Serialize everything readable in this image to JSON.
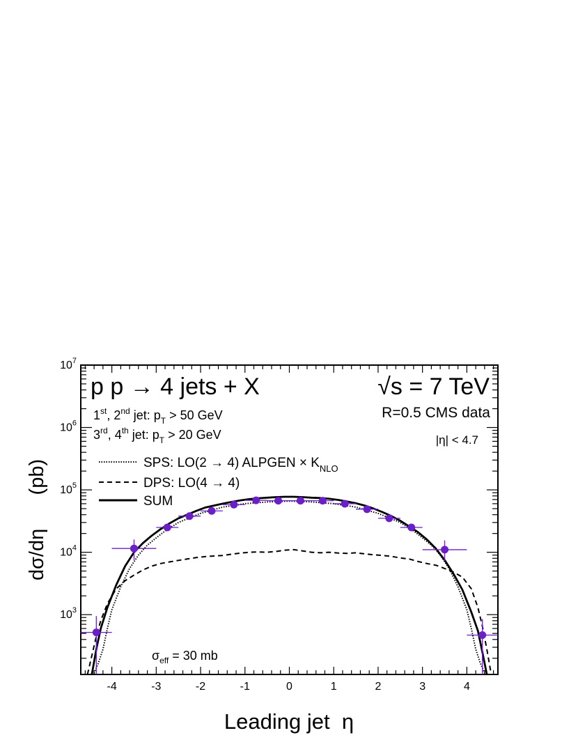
{
  "chart_data": {
    "type": "line",
    "title": "p p → 4 jets + X",
    "energy_label": "√s = 7 TeV",
    "xlabel": "Leading jet  η",
    "ylabel": "dσ/dη      (pb)",
    "xlim": [
      -4.7,
      4.7
    ],
    "ylim": [
      110,
      10000000
    ],
    "yscale": "log",
    "xticks": [
      "-4",
      "-3",
      "-2",
      "-1",
      "0",
      "1",
      "2",
      "3",
      "4"
    ],
    "yticks": [
      {
        "base": "10",
        "exp": "3"
      },
      {
        "base": "10",
        "exp": "4"
      },
      {
        "base": "10",
        "exp": "5"
      },
      {
        "base": "10",
        "exp": "6"
      },
      {
        "base": "10",
        "exp": "7"
      }
    ],
    "annotations": {
      "cut1": {
        "s1": "1",
        "s1sup": "st",
        "s2": ", 2",
        "s2sup": "nd",
        "s3": " jet: p",
        "s3sub": "T",
        "s4": " > 50 GeV"
      },
      "cut2": {
        "s1": "3",
        "s1sup": "rd",
        "s2": ", 4",
        "s2sup": "th",
        "s3": " jet: p",
        "s3sub": "T",
        "s4": " > 20 GeV"
      },
      "cms": "R=0.5  CMS data",
      "eta_cut": "|η| < 4.7",
      "sigma": {
        "main": "σ",
        "sub": "eff",
        "rest": " = 30 mb"
      }
    },
    "legend": {
      "position": "upper-left",
      "entries": [
        {
          "style": "dotted",
          "text": "SPS: LO(2 → 4) ALPGEN × K",
          "sub": "NLO"
        },
        {
          "style": "dashed",
          "text": "DPS: LO(4 → 4)",
          "sub": ""
        },
        {
          "style": "solid",
          "text": "SUM",
          "sub": ""
        }
      ]
    },
    "series": [
      {
        "name": "SPS: LO(2 → 4) ALPGEN × K_NLO",
        "style": "dotted",
        "x": [
          -4.4,
          -4.3,
          -4.2,
          -4.1,
          -4.0,
          -3.8,
          -3.6,
          -3.4,
          -3.2,
          -3.0,
          -2.8,
          -2.5,
          -2.0,
          -1.5,
          -1.0,
          -0.5,
          0,
          0.5,
          1.0,
          1.5,
          2.0,
          2.5,
          2.8,
          3.0,
          3.2,
          3.4,
          3.6,
          3.8,
          4.0,
          4.1,
          4.2,
          4.3,
          4.4
        ],
        "y": [
          115,
          170,
          280,
          600,
          1200,
          2800,
          5500,
          9000,
          13000,
          17000,
          22000,
          30000,
          42000,
          53000,
          60000,
          64000,
          66000,
          64000,
          60000,
          53000,
          42000,
          30000,
          22000,
          17000,
          13000,
          9000,
          5500,
          2800,
          1200,
          600,
          280,
          170,
          115
        ]
      },
      {
        "name": "DPS: LO(4 → 4)",
        "style": "dashed",
        "x": [
          -4.55,
          -4.45,
          -4.35,
          -4.25,
          -4.1,
          -3.9,
          -3.7,
          -3.5,
          -3.3,
          -3.1,
          -2.9,
          -2.7,
          -2.5,
          -2.3,
          -2.1,
          -1.9,
          -1.7,
          -1.5,
          -1.3,
          -1.1,
          -0.9,
          -0.7,
          -0.5,
          -0.3,
          -0.1,
          0.1,
          0.3,
          0.5,
          0.7,
          0.9,
          1.1,
          1.3,
          1.5,
          1.7,
          1.9,
          2.1,
          2.3,
          2.5,
          2.7,
          2.9,
          3.1,
          3.3,
          3.5,
          3.7,
          3.9,
          4.1,
          4.25,
          4.35,
          4.45,
          4.55
        ],
        "y": [
          110,
          220,
          450,
          800,
          1500,
          2600,
          3500,
          4300,
          5200,
          6000,
          6600,
          7000,
          7400,
          7800,
          8200,
          8500,
          8700,
          8900,
          9300,
          9700,
          10000,
          10100,
          10000,
          10300,
          10800,
          11000,
          10500,
          10000,
          9800,
          10000,
          9700,
          9600,
          9800,
          9400,
          9100,
          8900,
          8600,
          8100,
          7800,
          7100,
          6600,
          6200,
          5500,
          4800,
          4000,
          2600,
          1300,
          650,
          280,
          110
        ]
      },
      {
        "name": "SUM",
        "style": "solid",
        "x": [
          -4.45,
          -4.35,
          -4.25,
          -4.1,
          -3.9,
          -3.7,
          -3.5,
          -3.3,
          -3.1,
          -2.9,
          -2.7,
          -2.5,
          -2.3,
          -2.1,
          -1.9,
          -1.7,
          -1.5,
          -1.3,
          -1.1,
          -0.9,
          -0.7,
          -0.5,
          -0.3,
          -0.1,
          0.1,
          0.3,
          0.5,
          0.7,
          0.9,
          1.1,
          1.3,
          1.5,
          1.7,
          1.9,
          2.1,
          2.3,
          2.5,
          2.7,
          2.9,
          3.1,
          3.3,
          3.5,
          3.7,
          3.9,
          4.1,
          4.25,
          4.35,
          4.45
        ],
        "y": [
          110,
          280,
          600,
          1300,
          3000,
          6000,
          10000,
          14000,
          18500,
          23500,
          29000,
          35000,
          40000,
          46000,
          52000,
          56000,
          60000,
          64000,
          68000,
          71000,
          73500,
          75000,
          76500,
          77500,
          77500,
          76500,
          75000,
          74000,
          72000,
          69000,
          65000,
          61000,
          56000,
          50000,
          44000,
          38000,
          32000,
          26000,
          21000,
          16000,
          11500,
          7500,
          4500,
          2500,
          1100,
          550,
          250,
          110
        ]
      },
      {
        "name": "CMS data",
        "style": "points",
        "x": [
          -4.35,
          -3.5,
          -2.75,
          -2.25,
          -1.75,
          -1.25,
          -0.75,
          -0.25,
          0.25,
          0.75,
          1.25,
          1.75,
          2.25,
          2.75,
          3.5,
          4.35
        ],
        "y": [
          520,
          11500,
          25000,
          38000,
          46000,
          58000,
          68000,
          67000,
          67000,
          67000,
          60000,
          49000,
          35000,
          25000,
          11000,
          470
        ],
        "xerr": [
          0.35,
          0.5,
          0.25,
          0.25,
          0.25,
          0.25,
          0.25,
          0.25,
          0.25,
          0.25,
          0.25,
          0.25,
          0.25,
          0.25,
          0.5,
          0.35
        ],
        "y_low": [
          110,
          7500,
          22000,
          35000,
          43000,
          55000,
          65000,
          64000,
          64000,
          64000,
          57000,
          46000,
          32000,
          22000,
          7200,
          110
        ],
        "y_high": [
          950,
          16000,
          28000,
          41000,
          49000,
          61000,
          71000,
          70000,
          70000,
          70000,
          63000,
          52000,
          38000,
          28000,
          15500,
          850
        ]
      }
    ]
  }
}
